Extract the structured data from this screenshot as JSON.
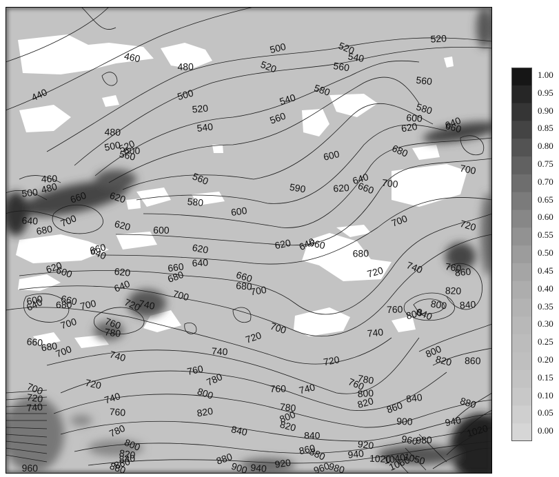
{
  "chart_data": {
    "type": "contour",
    "colorbar": {
      "labels": [
        "1.00",
        "0.95",
        "0.90",
        "0.85",
        "0.80",
        "0.75",
        "0.70",
        "0.65",
        "0.60",
        "0.55",
        "0.50",
        "0.45",
        "0.40",
        "0.35",
        "0.30",
        "0.25",
        "0.20",
        "0.15",
        "0.10",
        "0.05",
        "0.00"
      ],
      "colors": [
        "#161616",
        "#262626",
        "#353535",
        "#444444",
        "#535353",
        "#616161",
        "#6e6e6e",
        "#7b7b7b",
        "#878787",
        "#929292",
        "#9c9c9c",
        "#a5a5a5",
        "#adadad",
        "#b3b3b3",
        "#b8b8b8",
        "#bcbcbc",
        "#bfbfbf",
        "#c3c3c3",
        "#c8c8c8",
        "#cfcfcf",
        "#d6d6d6"
      ]
    },
    "contour_labels": [
      {
        "text": "440",
        "x": 0.07,
        "y": 0.19
      },
      {
        "text": "460",
        "x": 0.26,
        "y": 0.11
      },
      {
        "text": "480",
        "x": 0.37,
        "y": 0.13
      },
      {
        "text": "500",
        "x": 0.56,
        "y": 0.09
      },
      {
        "text": "520",
        "x": 0.7,
        "y": 0.09
      },
      {
        "text": "540",
        "x": 0.72,
        "y": 0.11
      },
      {
        "text": "520",
        "x": 0.89,
        "y": 0.07
      },
      {
        "text": "500",
        "x": 0.37,
        "y": 0.19
      },
      {
        "text": "520",
        "x": 0.54,
        "y": 0.13
      },
      {
        "text": "560",
        "x": 0.69,
        "y": 0.13
      },
      {
        "text": "520",
        "x": 0.4,
        "y": 0.22
      },
      {
        "text": "540",
        "x": 0.58,
        "y": 0.2
      },
      {
        "text": "580",
        "x": 0.65,
        "y": 0.18
      },
      {
        "text": "560",
        "x": 0.86,
        "y": 0.16
      },
      {
        "text": "540",
        "x": 0.41,
        "y": 0.26
      },
      {
        "text": "560",
        "x": 0.56,
        "y": 0.24
      },
      {
        "text": "580",
        "x": 0.86,
        "y": 0.22
      },
      {
        "text": "600",
        "x": 0.84,
        "y": 0.24
      },
      {
        "text": "620",
        "x": 0.83,
        "y": 0.26
      },
      {
        "text": "640",
        "x": 0.92,
        "y": 0.25
      },
      {
        "text": "660",
        "x": 0.92,
        "y": 0.26
      },
      {
        "text": "480",
        "x": 0.22,
        "y": 0.27
      },
      {
        "text": "500",
        "x": 0.22,
        "y": 0.3
      },
      {
        "text": "520",
        "x": 0.25,
        "y": 0.3
      },
      {
        "text": "560",
        "x": 0.25,
        "y": 0.32
      },
      {
        "text": "600",
        "x": 0.26,
        "y": 0.31
      },
      {
        "text": "600",
        "x": 0.67,
        "y": 0.32
      },
      {
        "text": "680",
        "x": 0.81,
        "y": 0.31
      },
      {
        "text": "700",
        "x": 0.95,
        "y": 0.35
      },
      {
        "text": "460",
        "x": 0.09,
        "y": 0.37
      },
      {
        "text": "480",
        "x": 0.09,
        "y": 0.39
      },
      {
        "text": "560",
        "x": 0.4,
        "y": 0.37
      },
      {
        "text": "590",
        "x": 0.6,
        "y": 0.39
      },
      {
        "text": "620",
        "x": 0.69,
        "y": 0.39
      },
      {
        "text": "640",
        "x": 0.73,
        "y": 0.37
      },
      {
        "text": "660",
        "x": 0.74,
        "y": 0.39
      },
      {
        "text": "700",
        "x": 0.79,
        "y": 0.38
      },
      {
        "text": "500",
        "x": 0.05,
        "y": 0.4
      },
      {
        "text": "660",
        "x": 0.15,
        "y": 0.41
      },
      {
        "text": "620",
        "x": 0.23,
        "y": 0.41
      },
      {
        "text": "580",
        "x": 0.39,
        "y": 0.42
      },
      {
        "text": "600",
        "x": 0.48,
        "y": 0.44
      },
      {
        "text": "700",
        "x": 0.81,
        "y": 0.46
      },
      {
        "text": "720",
        "x": 0.95,
        "y": 0.47
      },
      {
        "text": "640",
        "x": 0.05,
        "y": 0.46
      },
      {
        "text": "680",
        "x": 0.08,
        "y": 0.48
      },
      {
        "text": "700",
        "x": 0.13,
        "y": 0.46
      },
      {
        "text": "620",
        "x": 0.24,
        "y": 0.47
      },
      {
        "text": "600",
        "x": 0.32,
        "y": 0.48
      },
      {
        "text": "620",
        "x": 0.57,
        "y": 0.51
      },
      {
        "text": "640",
        "x": 0.62,
        "y": 0.51
      },
      {
        "text": "660",
        "x": 0.64,
        "y": 0.51
      },
      {
        "text": "680",
        "x": 0.73,
        "y": 0.53
      },
      {
        "text": "660",
        "x": 0.19,
        "y": 0.52
      },
      {
        "text": "640",
        "x": 0.19,
        "y": 0.53
      },
      {
        "text": "620",
        "x": 0.4,
        "y": 0.52
      },
      {
        "text": "640",
        "x": 0.4,
        "y": 0.55
      },
      {
        "text": "720",
        "x": 0.76,
        "y": 0.57
      },
      {
        "text": "740",
        "x": 0.84,
        "y": 0.56
      },
      {
        "text": "760",
        "x": 0.92,
        "y": 0.56
      },
      {
        "text": "860",
        "x": 0.94,
        "y": 0.57
      },
      {
        "text": "620",
        "x": 0.1,
        "y": 0.56
      },
      {
        "text": "600",
        "x": 0.12,
        "y": 0.57
      },
      {
        "text": "620",
        "x": 0.24,
        "y": 0.57
      },
      {
        "text": "660",
        "x": 0.35,
        "y": 0.56
      },
      {
        "text": "680",
        "x": 0.35,
        "y": 0.58
      },
      {
        "text": "660",
        "x": 0.49,
        "y": 0.58
      },
      {
        "text": "680",
        "x": 0.49,
        "y": 0.6
      },
      {
        "text": "700",
        "x": 0.52,
        "y": 0.61
      },
      {
        "text": "640",
        "x": 0.24,
        "y": 0.6
      },
      {
        "text": "700",
        "x": 0.36,
        "y": 0.62
      },
      {
        "text": "820",
        "x": 0.92,
        "y": 0.61
      },
      {
        "text": "600",
        "x": 0.06,
        "y": 0.63
      },
      {
        "text": "640",
        "x": 0.06,
        "y": 0.64
      },
      {
        "text": "660",
        "x": 0.13,
        "y": 0.63
      },
      {
        "text": "680",
        "x": 0.12,
        "y": 0.64
      },
      {
        "text": "700",
        "x": 0.17,
        "y": 0.64
      },
      {
        "text": "720",
        "x": 0.26,
        "y": 0.64
      },
      {
        "text": "740",
        "x": 0.29,
        "y": 0.64
      },
      {
        "text": "760",
        "x": 0.8,
        "y": 0.65
      },
      {
        "text": "800",
        "x": 0.84,
        "y": 0.66
      },
      {
        "text": "840",
        "x": 0.86,
        "y": 0.66
      },
      {
        "text": "800",
        "x": 0.89,
        "y": 0.64
      },
      {
        "text": "840",
        "x": 0.95,
        "y": 0.64
      },
      {
        "text": "700",
        "x": 0.13,
        "y": 0.68
      },
      {
        "text": "760",
        "x": 0.22,
        "y": 0.68
      },
      {
        "text": "780",
        "x": 0.22,
        "y": 0.7
      },
      {
        "text": "740",
        "x": 0.76,
        "y": 0.7
      },
      {
        "text": "720",
        "x": 0.51,
        "y": 0.71
      },
      {
        "text": "700",
        "x": 0.56,
        "y": 0.69
      },
      {
        "text": "660",
        "x": 0.06,
        "y": 0.72
      },
      {
        "text": "680",
        "x": 0.09,
        "y": 0.73
      },
      {
        "text": "700",
        "x": 0.12,
        "y": 0.74
      },
      {
        "text": "740",
        "x": 0.23,
        "y": 0.75
      },
      {
        "text": "740",
        "x": 0.44,
        "y": 0.74
      },
      {
        "text": "720",
        "x": 0.67,
        "y": 0.76
      },
      {
        "text": "800",
        "x": 0.88,
        "y": 0.74
      },
      {
        "text": "820",
        "x": 0.9,
        "y": 0.76
      },
      {
        "text": "860",
        "x": 0.96,
        "y": 0.76
      },
      {
        "text": "760",
        "x": 0.39,
        "y": 0.78
      },
      {
        "text": "780",
        "x": 0.43,
        "y": 0.8
      },
      {
        "text": "720",
        "x": 0.18,
        "y": 0.81
      },
      {
        "text": "760",
        "x": 0.56,
        "y": 0.82
      },
      {
        "text": "740",
        "x": 0.62,
        "y": 0.82
      },
      {
        "text": "760",
        "x": 0.72,
        "y": 0.81
      },
      {
        "text": "780",
        "x": 0.74,
        "y": 0.8
      },
      {
        "text": "800",
        "x": 0.74,
        "y": 0.83
      },
      {
        "text": "820",
        "x": 0.74,
        "y": 0.85
      },
      {
        "text": "700",
        "x": 0.06,
        "y": 0.82
      },
      {
        "text": "720",
        "x": 0.06,
        "y": 0.84
      },
      {
        "text": "740",
        "x": 0.06,
        "y": 0.86
      },
      {
        "text": "740",
        "x": 0.22,
        "y": 0.84
      },
      {
        "text": "800",
        "x": 0.41,
        "y": 0.83
      },
      {
        "text": "780",
        "x": 0.58,
        "y": 0.86
      },
      {
        "text": "840",
        "x": 0.84,
        "y": 0.84
      },
      {
        "text": "860",
        "x": 0.8,
        "y": 0.86
      },
      {
        "text": "880",
        "x": 0.95,
        "y": 0.85
      },
      {
        "text": "760",
        "x": 0.23,
        "y": 0.87
      },
      {
        "text": "820",
        "x": 0.41,
        "y": 0.87
      },
      {
        "text": "800",
        "x": 0.58,
        "y": 0.88
      },
      {
        "text": "820",
        "x": 0.58,
        "y": 0.9
      },
      {
        "text": "900",
        "x": 0.82,
        "y": 0.89
      },
      {
        "text": "940",
        "x": 0.92,
        "y": 0.89
      },
      {
        "text": "780",
        "x": 0.23,
        "y": 0.91
      },
      {
        "text": "840",
        "x": 0.48,
        "y": 0.91
      },
      {
        "text": "840",
        "x": 0.63,
        "y": 0.92
      },
      {
        "text": "860",
        "x": 0.62,
        "y": 0.95
      },
      {
        "text": "880",
        "x": 0.64,
        "y": 0.96
      },
      {
        "text": "960",
        "x": 0.83,
        "y": 0.93
      },
      {
        "text": "980",
        "x": 0.86,
        "y": 0.93
      },
      {
        "text": "1020",
        "x": 0.97,
        "y": 0.91
      },
      {
        "text": "800",
        "x": 0.26,
        "y": 0.94
      },
      {
        "text": "820",
        "x": 0.25,
        "y": 0.96
      },
      {
        "text": "840",
        "x": 0.25,
        "y": 0.97
      },
      {
        "text": "860",
        "x": 0.24,
        "y": 0.98
      },
      {
        "text": "880",
        "x": 0.23,
        "y": 0.99
      },
      {
        "text": "920",
        "x": 0.74,
        "y": 0.94
      },
      {
        "text": "940",
        "x": 0.72,
        "y": 0.96
      },
      {
        "text": "880",
        "x": 0.45,
        "y": 0.97
      },
      {
        "text": "900",
        "x": 0.48,
        "y": 0.99
      },
      {
        "text": "940",
        "x": 0.52,
        "y": 0.99
      },
      {
        "text": "920",
        "x": 0.57,
        "y": 0.98
      },
      {
        "text": "960",
        "x": 0.65,
        "y": 0.99
      },
      {
        "text": "980",
        "x": 0.68,
        "y": 0.99
      },
      {
        "text": "1020",
        "x": 0.77,
        "y": 0.97
      },
      {
        "text": "1040",
        "x": 0.8,
        "y": 0.97
      },
      {
        "text": "1060",
        "x": 0.81,
        "y": 0.98
      },
      {
        "text": "1050",
        "x": 0.84,
        "y": 0.97
      },
      {
        "text": "960",
        "x": 0.05,
        "y": 0.99
      }
    ]
  }
}
